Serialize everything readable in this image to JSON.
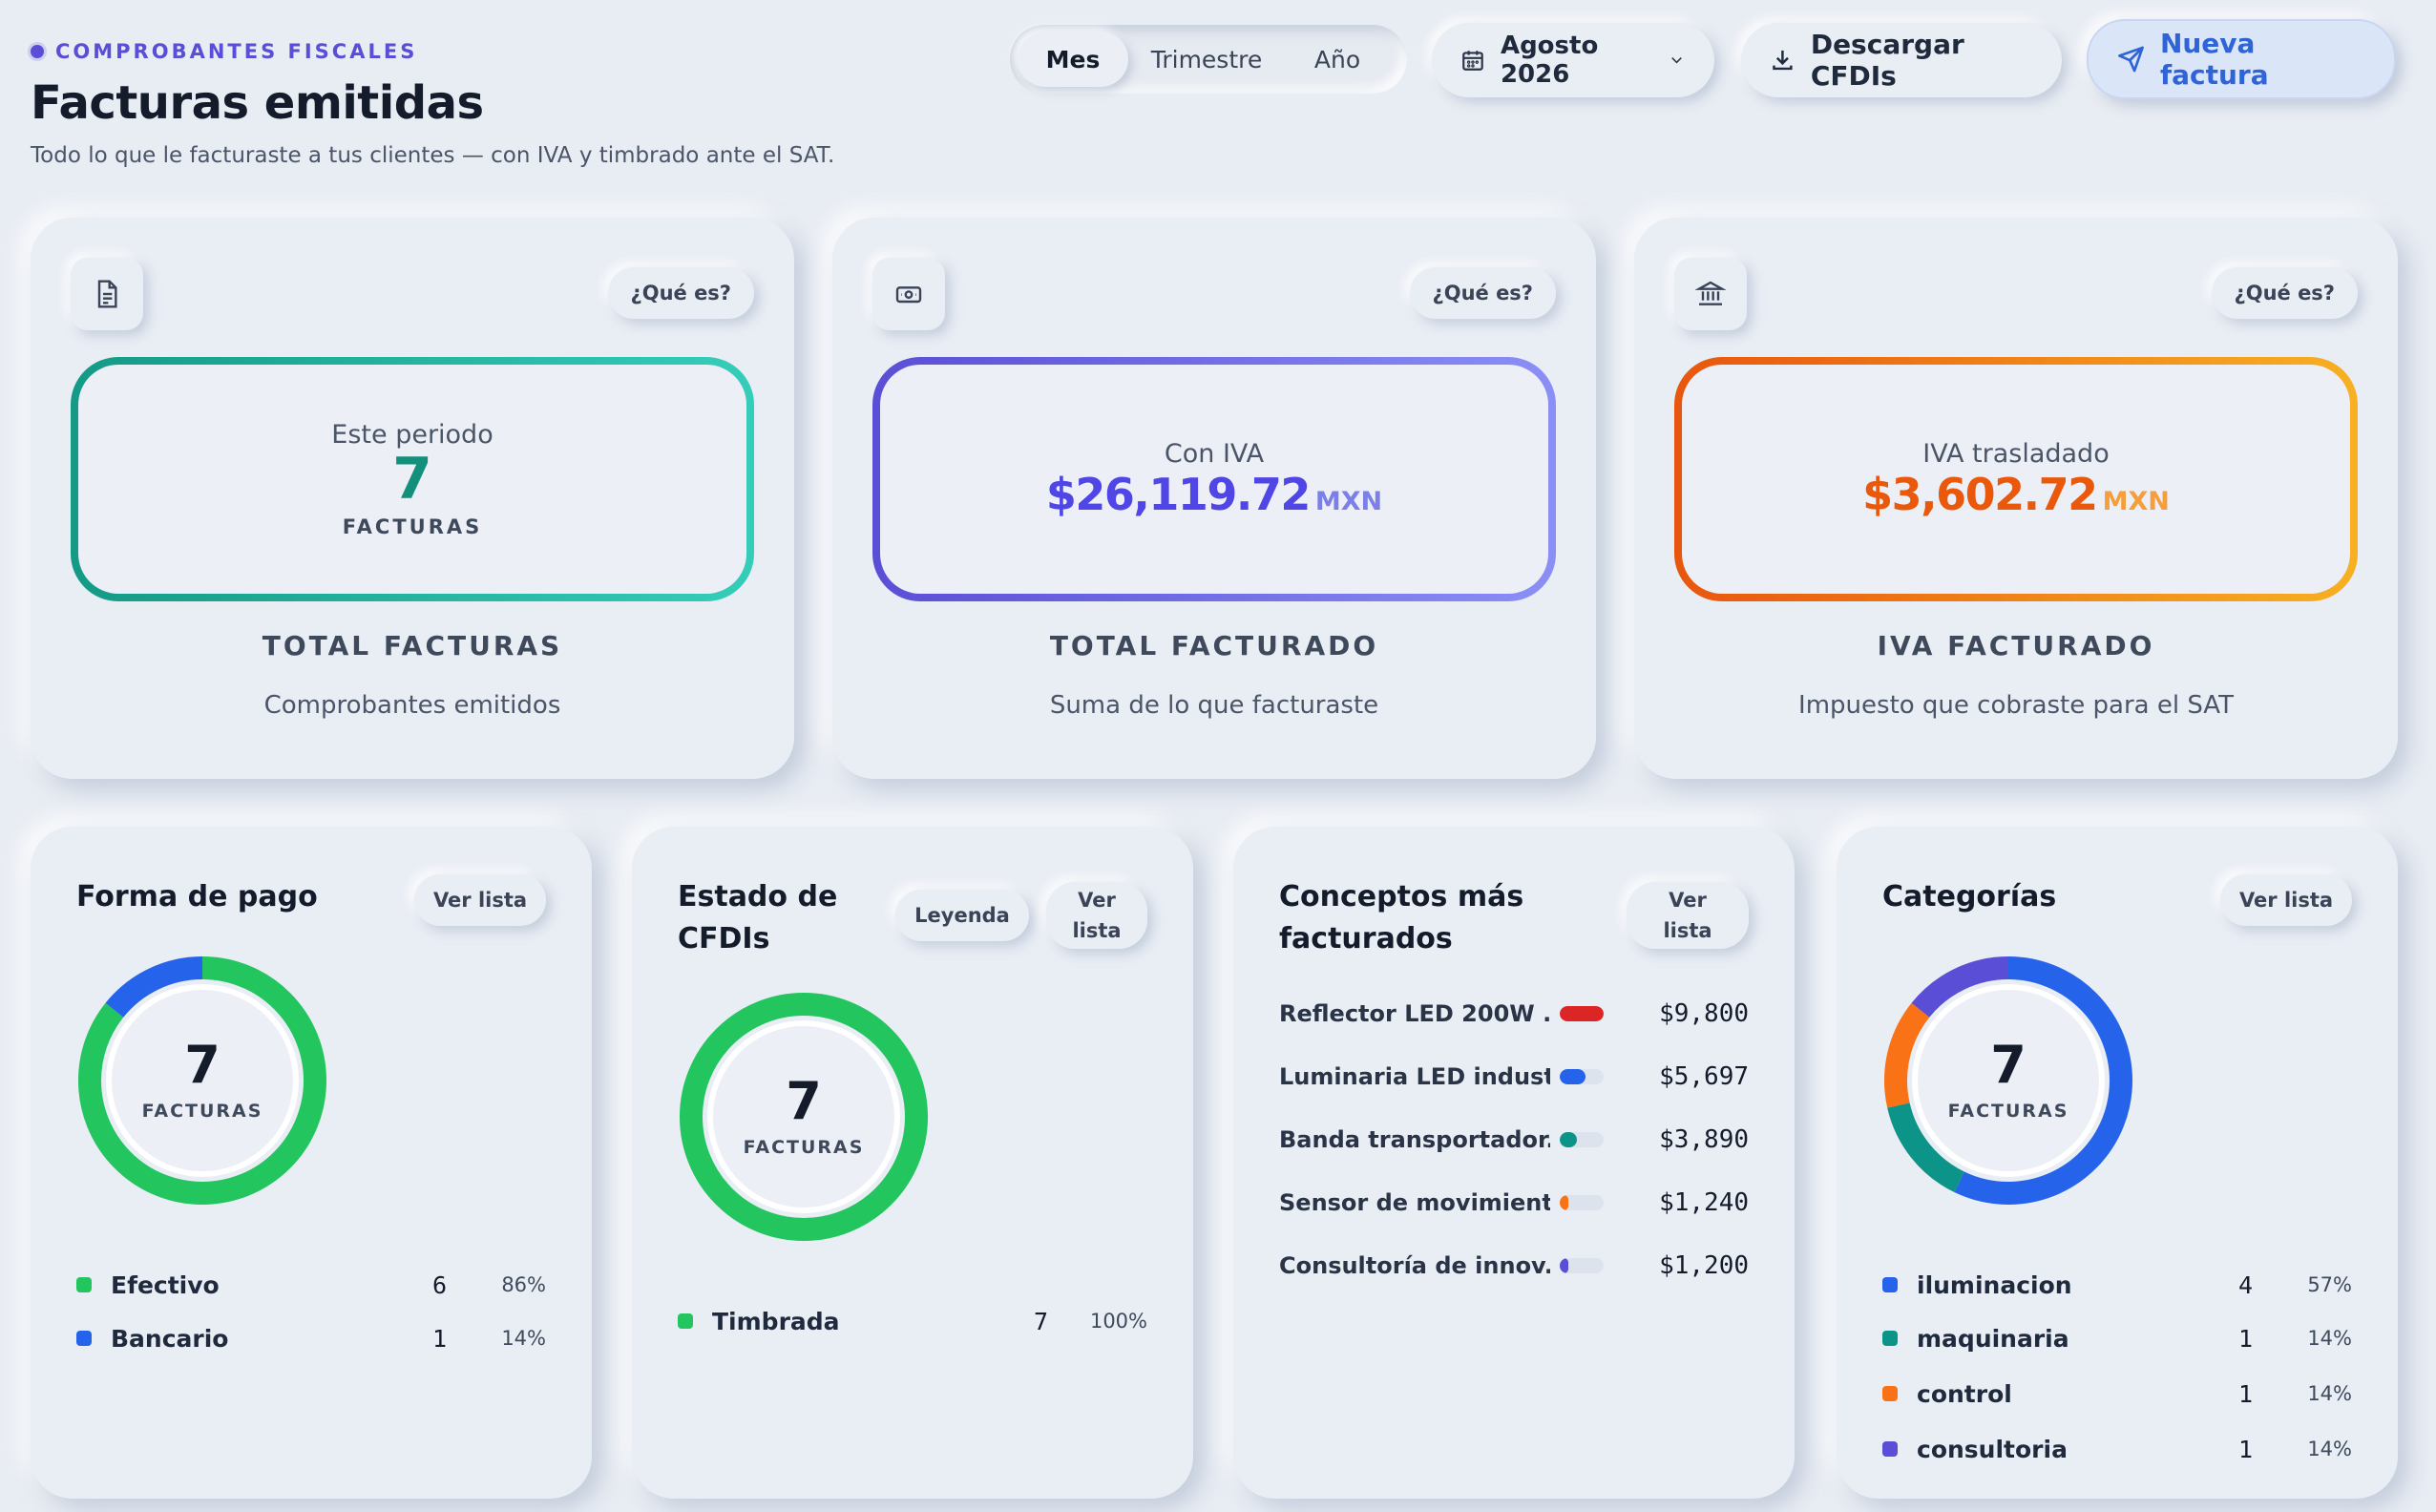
{
  "header": {
    "eyebrow": "COMPROBANTES FISCALES",
    "title": "Facturas emitidas",
    "subtitle": "Todo lo que le facturaste a tus clientes — con IVA y timbrado ante el SAT."
  },
  "period_tabs": [
    {
      "label": "Mes",
      "active": true
    },
    {
      "label": "Trimestre",
      "active": false
    },
    {
      "label": "Año",
      "active": false
    }
  ],
  "date_picker": {
    "value": "Agosto 2026",
    "icon": "calendar-icon"
  },
  "actions": {
    "download_label": "Descargar CFDIs",
    "new_label": "Nueva factura"
  },
  "kpis": [
    {
      "icon": "document-icon",
      "help": "¿Qué es?",
      "top_label": "Este periodo",
      "value": "7",
      "unit": "FACTURAS",
      "label": "TOTAL FACTURAS",
      "desc": "Comprobantes emitidos",
      "accent": "#12907c"
    },
    {
      "icon": "cash-icon",
      "help": "¿Qué es?",
      "top_label": "Con IVA",
      "value": "$26,119.72",
      "unit": "MXN",
      "label": "TOTAL FACTURADO",
      "desc": "Suma de lo que facturaste",
      "accent": "#5a4ed6"
    },
    {
      "icon": "bank-icon",
      "help": "¿Qué es?",
      "top_label": "IVA trasladado",
      "value": "$3,602.72",
      "unit": "MXN",
      "label": "IVA FACTURADO",
      "desc": "Impuesto que cobraste para el SAT",
      "accent": "#e8560e"
    }
  ],
  "panels": {
    "payment": {
      "title": "Forma de pago",
      "list_label": "Ver lista",
      "total": "7",
      "total_caption": "FACTURAS",
      "items": [
        {
          "name": "Efectivo",
          "count": "6",
          "pct": "86%",
          "value": 6,
          "color": "#22c55e"
        },
        {
          "name": "Bancario",
          "count": "1",
          "pct": "14%",
          "value": 1,
          "color": "#2563eb"
        }
      ]
    },
    "status": {
      "title_line1": "Estado de",
      "title_line2": "CFDIs",
      "legend_label": "Leyenda",
      "list_line1": "Ver",
      "list_line2": "lista",
      "total": "7",
      "total_caption": "FACTURAS",
      "items": [
        {
          "name": "Timbrada",
          "count": "7",
          "pct": "100%",
          "value": 7,
          "color": "#22c55e"
        }
      ]
    },
    "concepts": {
      "title_line1": "Conceptos más",
      "title_line2": "facturados",
      "list_line1": "Ver",
      "list_line2": "lista",
      "items": [
        {
          "name": "Reflector LED 200W ...",
          "amount": "$9,800",
          "value": 9800,
          "color": "#dc2626"
        },
        {
          "name": "Luminaria LED indust...",
          "amount": "$5,697",
          "value": 5697,
          "color": "#2563eb"
        },
        {
          "name": "Banda transportador...",
          "amount": "$3,890",
          "value": 3890,
          "color": "#0d9488"
        },
        {
          "name": "Sensor de movimient...",
          "amount": "$1,240",
          "value": 1240,
          "color": "#f97316"
        },
        {
          "name": "Consultoría de innov...",
          "amount": "$1,200",
          "value": 1200,
          "color": "#5a4ed6"
        }
      ]
    },
    "categories": {
      "title": "Categorías",
      "list_label": "Ver lista",
      "total": "7",
      "total_caption": "FACTURAS",
      "items": [
        {
          "name": "iluminacion",
          "count": "4",
          "pct": "57%",
          "value": 4,
          "color": "#2563eb"
        },
        {
          "name": "maquinaria",
          "count": "1",
          "pct": "14%",
          "value": 1,
          "color": "#0d9488"
        },
        {
          "name": "control",
          "count": "1",
          "pct": "14%",
          "value": 1,
          "color": "#f97316"
        },
        {
          "name": "consultoria",
          "count": "1",
          "pct": "14%",
          "value": 1,
          "color": "#5a4ed6"
        }
      ]
    }
  }
}
